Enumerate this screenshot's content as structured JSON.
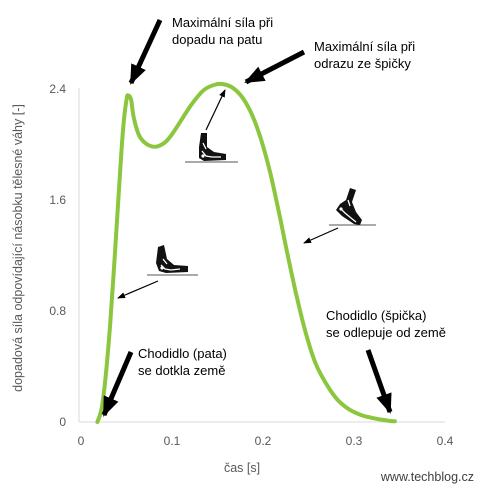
{
  "chart_data": {
    "type": "line",
    "title": "",
    "xlabel": "čas [s]",
    "ylabel": "dopadová síla odpovídající násobku tělesné váhy [-]",
    "xlim": [
      0,
      0.4
    ],
    "ylim": [
      0,
      2.4
    ],
    "x_ticks": [
      "0",
      "0.1",
      "0.2",
      "0.3",
      "0.4"
    ],
    "y_ticks": [
      "0",
      "0.8",
      "1.6",
      "2.4"
    ],
    "grid": false,
    "series": [
      {
        "x": [
          0.018,
          0.024,
          0.032,
          0.04,
          0.046,
          0.05,
          0.052,
          0.055,
          0.058,
          0.064,
          0.072,
          0.082,
          0.092,
          0.1,
          0.11,
          0.122,
          0.135,
          0.148,
          0.158,
          0.168,
          0.178,
          0.188,
          0.198,
          0.208,
          0.218,
          0.228,
          0.238,
          0.248,
          0.258,
          0.27,
          0.282,
          0.295,
          0.308,
          0.32,
          0.332,
          0.34,
          0.345
        ],
        "y": [
          0.0,
          0.15,
          0.7,
          1.5,
          2.1,
          2.33,
          2.36,
          2.33,
          2.2,
          2.07,
          2.01,
          1.99,
          2.02,
          2.08,
          2.18,
          2.3,
          2.4,
          2.44,
          2.44,
          2.41,
          2.34,
          2.22,
          2.04,
          1.8,
          1.5,
          1.18,
          0.88,
          0.62,
          0.42,
          0.27,
          0.16,
          0.09,
          0.05,
          0.03,
          0.015,
          0.007,
          0.005
        ],
        "color": "#8CC63F"
      }
    ],
    "annotations": [
      {
        "lines": [
          "Maximální síla při",
          "dopadu na patu"
        ]
      },
      {
        "lines": [
          "Maximální síla při",
          "odrazu ze špičky"
        ]
      },
      {
        "lines": [
          "Chodidlo (pata)",
          "se dotkla země"
        ]
      },
      {
        "lines": [
          "Chodidlo (špička)",
          "se odlepuje od země"
        ]
      }
    ]
  },
  "credit": "www.techblog.cz",
  "colors": {
    "line": "#8CC63F",
    "axis": "#d9d9d9",
    "text": "#595959",
    "arrow": "#000000"
  }
}
